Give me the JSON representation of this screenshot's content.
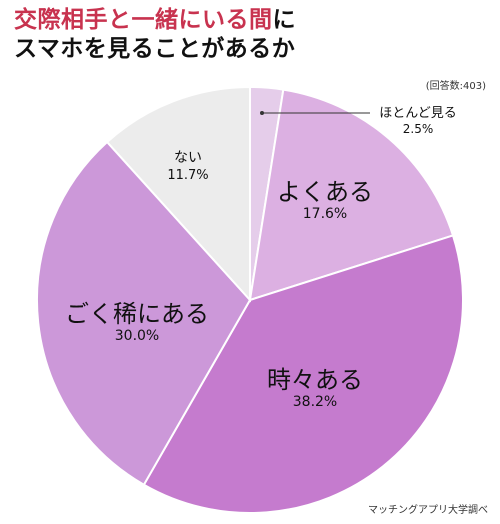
{
  "header": {
    "title_accent": "交際相手と一緒にいる間",
    "title_suffix": "に",
    "title_line2": "スマホを見ることがあるか"
  },
  "note": "(回答数:403)",
  "source": "マッチングアプリ大学調べ",
  "chart_data": {
    "type": "pie",
    "title": "交際相手と一緒にいる間にスマホを見ることがあるか",
    "total_responses": 403,
    "slices": [
      {
        "label": "ほとんど見る",
        "value": 2.5,
        "value_label": "2.5%",
        "color": "#e5cdea"
      },
      {
        "label": "よくある",
        "value": 17.6,
        "value_label": "17.6%",
        "color": "#dcb0e2"
      },
      {
        "label": "時々ある",
        "value": 38.2,
        "value_label": "38.2%",
        "color": "#c57bce"
      },
      {
        "label": "ごく稀にある",
        "value": 30.0,
        "value_label": "30.0%",
        "color": "#cc98d9"
      },
      {
        "label": "ない",
        "value": 11.7,
        "value_label": "11.7%",
        "color": "#ececec"
      }
    ]
  }
}
